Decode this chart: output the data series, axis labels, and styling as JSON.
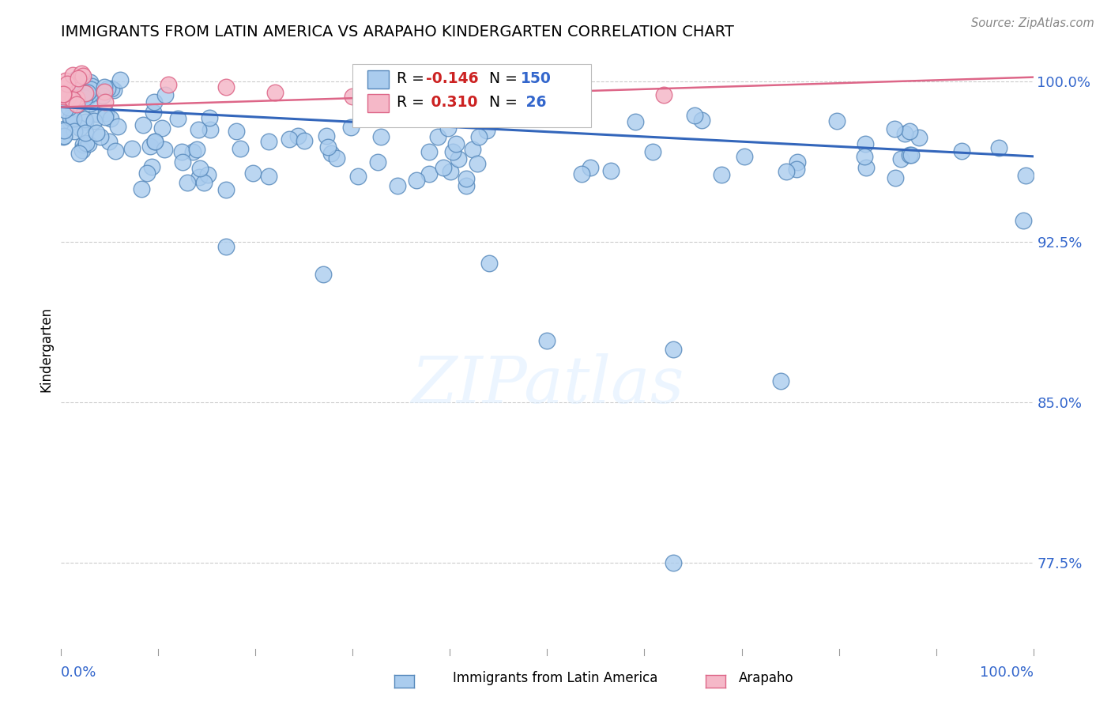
{
  "title": "IMMIGRANTS FROM LATIN AMERICA VS ARAPAHO KINDERGARTEN CORRELATION CHART",
  "source": "Source: ZipAtlas.com",
  "ylabel": "Kindergarten",
  "legend_label_blue": "Immigrants from Latin America",
  "legend_label_pink": "Arapaho",
  "R_blue": -0.146,
  "N_blue": 150,
  "R_pink": 0.31,
  "N_pink": 26,
  "ytick_labels": [
    "100.0%",
    "92.5%",
    "85.0%",
    "77.5%"
  ],
  "ytick_values": [
    1.0,
    0.925,
    0.85,
    0.775
  ],
  "xlim": [
    0.0,
    1.0
  ],
  "ylim": [
    0.735,
    1.015
  ],
  "blue_scatter_color": "#aaccee",
  "blue_scatter_edge": "#5588bb",
  "pink_scatter_color": "#f5b8c8",
  "pink_scatter_edge": "#dd6688",
  "blue_line_color": "#3366bb",
  "pink_line_color": "#dd6688",
  "blue_line_y0": 0.988,
  "blue_line_y1": 0.965,
  "pink_line_y0": 0.988,
  "pink_line_y1": 1.002
}
